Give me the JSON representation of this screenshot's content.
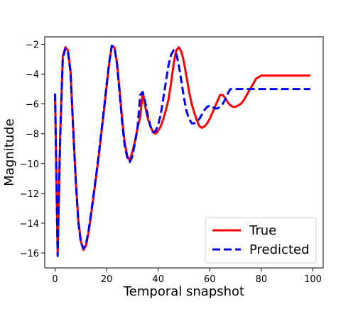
{
  "chart_data": {
    "type": "line",
    "title": "",
    "xlabel": "Temporal snapshot",
    "ylabel": "Magnitude",
    "xlim": [
      -4,
      104
    ],
    "ylim": [
      -17,
      -1.5
    ],
    "xticks": [
      0,
      20,
      40,
      60,
      80,
      100
    ],
    "yticks": [
      -16,
      -14,
      -12,
      -10,
      -8,
      -6,
      -4,
      -2
    ],
    "xtick_labels": [
      "0",
      "20",
      "40",
      "60",
      "80",
      "100"
    ],
    "ytick_labels": [
      "−16",
      "−14",
      "−12",
      "−10",
      "−8",
      "−6",
      "−4",
      "−2"
    ],
    "grid": false,
    "legend": {
      "position": "lower-right"
    },
    "series": [
      {
        "name": "True",
        "color": "#ff0000",
        "style": "solid",
        "x": [
          0,
          1,
          2,
          3,
          4,
          5,
          6,
          7,
          8,
          9,
          10,
          11,
          12,
          13,
          14,
          15,
          16,
          17,
          18,
          19,
          20,
          21,
          22,
          23,
          24,
          25,
          26,
          27,
          28,
          29,
          30,
          31,
          32,
          33,
          34,
          35,
          36,
          37,
          38,
          39,
          40,
          41,
          42,
          43,
          44,
          45,
          46,
          47,
          48,
          49,
          50,
          51,
          52,
          53,
          54,
          55,
          56,
          57,
          58,
          59,
          60,
          61,
          62,
          63,
          64,
          65,
          66,
          67,
          68,
          69,
          70,
          71,
          72,
          73,
          74,
          75,
          76,
          77,
          78,
          79,
          80,
          81,
          82,
          83,
          84,
          85,
          86,
          87,
          88,
          89,
          90,
          91,
          92,
          93,
          94,
          95,
          96,
          97,
          98,
          99
        ],
        "y": [
          -5.4,
          -16.0,
          -8.0,
          -2.8,
          -2.2,
          -2.4,
          -3.8,
          -7.5,
          -11.0,
          -13.8,
          -15.2,
          -15.8,
          -15.5,
          -14.6,
          -13.4,
          -12.1,
          -10.8,
          -9.4,
          -7.9,
          -6.4,
          -4.8,
          -3.3,
          -2.1,
          -2.2,
          -3.2,
          -5.0,
          -7.0,
          -8.6,
          -9.5,
          -9.8,
          -9.2,
          -8.5,
          -7.6,
          -6.9,
          -5.2,
          -6.2,
          -7.0,
          -7.5,
          -7.9,
          -8.0,
          -7.8,
          -7.5,
          -7.0,
          -6.4,
          -5.7,
          -4.6,
          -3.3,
          -2.4,
          -2.2,
          -2.5,
          -3.2,
          -4.2,
          -5.2,
          -6.0,
          -6.6,
          -7.1,
          -7.5,
          -7.6,
          -7.5,
          -7.3,
          -7.0,
          -6.6,
          -6.2,
          -5.8,
          -5.4,
          -5.4,
          -5.6,
          -5.9,
          -6.1,
          -6.2,
          -6.2,
          -6.1,
          -6.0,
          -5.8,
          -5.5,
          -5.2,
          -4.9,
          -4.6,
          -4.3,
          -4.2,
          -4.1,
          -4.1,
          -4.1,
          -4.1,
          -4.1,
          -4.1,
          -4.1,
          -4.1,
          -4.1,
          -4.1,
          -4.1,
          -4.1,
          -4.1,
          -4.1,
          -4.1,
          -4.1,
          -4.1,
          -4.1,
          -4.1,
          -4.1
        ]
      },
      {
        "name": "Predicted",
        "color": "#0000ff",
        "style": "dashed",
        "x": [
          0,
          1,
          2,
          3,
          4,
          5,
          6,
          7,
          8,
          9,
          10,
          11,
          12,
          13,
          14,
          15,
          16,
          17,
          18,
          19,
          20,
          21,
          22,
          23,
          24,
          25,
          26,
          27,
          28,
          29,
          30,
          31,
          32,
          33,
          34,
          35,
          36,
          37,
          38,
          39,
          40,
          41,
          42,
          43,
          44,
          45,
          46,
          47,
          48,
          49,
          50,
          51,
          52,
          53,
          54,
          55,
          56,
          57,
          58,
          59,
          60,
          61,
          62,
          63,
          64,
          65,
          66,
          67,
          68,
          69,
          70,
          71,
          72,
          73,
          74,
          75,
          76,
          77,
          78,
          79,
          80,
          81,
          82,
          83,
          84,
          85,
          86,
          87,
          88,
          89,
          90,
          91,
          92,
          93,
          94,
          95,
          96,
          97,
          98,
          99
        ],
        "y": [
          -5.3,
          -16.2,
          -8.2,
          -2.9,
          -2.3,
          -2.5,
          -3.9,
          -7.6,
          -11.1,
          -13.9,
          -15.3,
          -15.7,
          -15.4,
          -14.5,
          -13.3,
          -12.0,
          -10.7,
          -9.3,
          -7.8,
          -6.3,
          -4.7,
          -3.2,
          -2.1,
          -2.2,
          -3.3,
          -5.2,
          -7.2,
          -8.8,
          -9.6,
          -9.9,
          -9.5,
          -8.6,
          -7.6,
          -5.4,
          -5.2,
          -5.9,
          -6.8,
          -7.5,
          -7.9,
          -7.8,
          -7.4,
          -6.7,
          -5.6,
          -4.5,
          -3.4,
          -2.7,
          -2.4,
          -2.6,
          -3.4,
          -4.5,
          -5.6,
          -6.5,
          -7.0,
          -7.3,
          -7.3,
          -7.2,
          -7.0,
          -6.7,
          -6.4,
          -6.2,
          -6.1,
          -6.2,
          -6.3,
          -6.3,
          -6.2,
          -6.0,
          -5.7,
          -5.3,
          -5.0,
          -5.0,
          -5.0,
          -5.0,
          -5.0,
          -5.0,
          -5.0,
          -5.0,
          -5.0,
          -5.0,
          -5.0,
          -5.0,
          -5.0,
          -5.0,
          -5.0,
          -5.0,
          -5.0,
          -5.0,
          -5.0,
          -5.0,
          -5.0,
          -5.0,
          -5.0,
          -5.0,
          -5.0,
          -5.0,
          -5.0,
          -5.0,
          -5.0,
          -5.0,
          -5.0,
          -5.0
        ]
      }
    ]
  }
}
